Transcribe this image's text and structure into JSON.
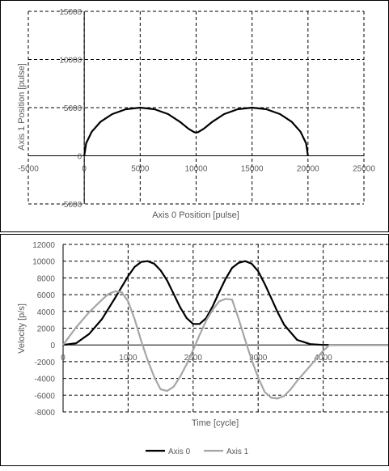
{
  "chart_data": [
    {
      "type": "scatter",
      "xlabel": "Axis 0 Position [pulse]",
      "ylabel": "Axis 1 Position [pulse]",
      "xlim": [
        -5000,
        25000
      ],
      "ylim": [
        -5000,
        15000
      ],
      "xticks": [
        "-5000",
        "0",
        "5000",
        "10000",
        "15000",
        "20000",
        "25000"
      ],
      "xtick_values": [
        -5000,
        0,
        5000,
        10000,
        15000,
        20000,
        25000
      ],
      "yticks": [
        "-5000",
        "0",
        "5000",
        "10000",
        "15000"
      ],
      "ytick_values": [
        -5000,
        0,
        5000,
        10000,
        15000
      ],
      "grid": true,
      "line_color": "#000000",
      "series": [
        {
          "x": [
            0,
            170,
            670,
            1460,
            2500,
            3710,
            5000,
            6290,
            7500,
            8540,
            9330,
            9830,
            10000,
            10170,
            10670,
            11460,
            12500,
            13710,
            15000,
            16290,
            17500,
            18540,
            19330,
            19830,
            20000
          ],
          "y": [
            0,
            1290,
            2500,
            3540,
            4330,
            4830,
            5000,
            4830,
            4330,
            3540,
            2800,
            2450,
            2400,
            2450,
            2800,
            3540,
            4330,
            4830,
            5000,
            4830,
            4330,
            3540,
            2500,
            1290,
            0
          ]
        }
      ]
    },
    {
      "type": "line",
      "xlabel": "Time [cycle]",
      "ylabel": "Velocity [p/s]",
      "xlim": [
        0,
        5000
      ],
      "ylim": [
        -8000,
        12000
      ],
      "xticks": [
        "0",
        "1000",
        "2000",
        "3000",
        "4000"
      ],
      "xtick_values": [
        0,
        1000,
        2000,
        3000,
        4000
      ],
      "yticks": [
        "12000",
        "10000",
        "8000",
        "6000",
        "4000",
        "2000",
        "0",
        "-2000",
        "-4000",
        "-6000",
        "-8000"
      ],
      "ytick_values": [
        12000,
        10000,
        8000,
        6000,
        4000,
        2000,
        0,
        -2000,
        -4000,
        -6000,
        -8000
      ],
      "grid": true,
      "legend": "bottom",
      "series": [
        {
          "name": "Axis 0",
          "color": "#000000",
          "x": [
            0,
            200,
            400,
            600,
            800,
            1000,
            1100,
            1200,
            1300,
            1400,
            1500,
            1600,
            1700,
            1800,
            1900,
            2000,
            2100,
            2200,
            2300,
            2400,
            2500,
            2600,
            2700,
            2800,
            2900,
            3000,
            3100,
            3200,
            3300,
            3400,
            3600,
            3800,
            4000,
            4100,
            5000
          ],
          "y": [
            0,
            200,
            1300,
            3100,
            5600,
            8200,
            9300,
            9900,
            10000,
            9700,
            8900,
            7700,
            6100,
            4500,
            3200,
            2500,
            2500,
            3200,
            4600,
            6300,
            7900,
            9200,
            9800,
            10000,
            9700,
            8800,
            7300,
            5600,
            3900,
            2400,
            600,
            100,
            0,
            0,
            0
          ]
        },
        {
          "name": "Axis 1",
          "color": "#a6a6a6",
          "x": [
            0,
            200,
            400,
            600,
            700,
            800,
            900,
            1000,
            1100,
            1200,
            1300,
            1400,
            1500,
            1600,
            1700,
            1800,
            1900,
            2000,
            2100,
            2200,
            2300,
            2400,
            2500,
            2600,
            2700,
            2800,
            2900,
            3000,
            3100,
            3200,
            3300,
            3400,
            3500,
            3600,
            3800,
            4000,
            4100,
            5000
          ],
          "y": [
            0,
            2100,
            3900,
            5400,
            6100,
            6400,
            6300,
            5200,
            3100,
            500,
            -1800,
            -3800,
            -5300,
            -5500,
            -5000,
            -3800,
            -2300,
            -600,
            1200,
            2900,
            4200,
            5200,
            5500,
            5400,
            3100,
            600,
            -1800,
            -3900,
            -5600,
            -6300,
            -6400,
            -6100,
            -5300,
            -4300,
            -2500,
            -700,
            0,
            0
          ]
        }
      ]
    }
  ]
}
